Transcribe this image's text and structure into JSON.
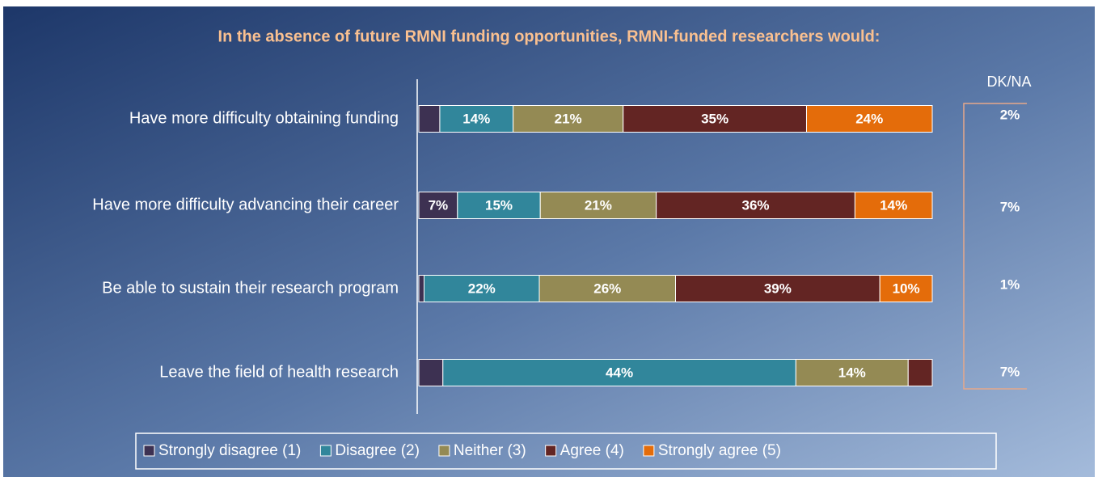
{
  "chart_data": {
    "type": "stacked-bar-horizontal",
    "title": "In the absence of future RMNI funding opportunities, RMNI-funded researchers would:",
    "categories": [
      "Have more difficulty obtaining funding",
      "Have more difficulty advancing their career",
      "Be able to sustain their research program",
      "Leave the field of health research"
    ],
    "series": [
      {
        "name": "Strongly disagree (1)",
        "color": "#3d3152",
        "values": [
          4,
          7,
          1,
          3
        ],
        "value_labels": [
          null,
          "7%",
          null,
          null
        ]
      },
      {
        "name": "Disagree (2)",
        "color": "#31869b",
        "values": [
          14,
          15,
          22,
          44
        ],
        "value_labels": [
          "14%",
          "15%",
          "22%",
          "44%"
        ]
      },
      {
        "name": "Neither (3)",
        "color": "#948a54",
        "values": [
          21,
          21,
          26,
          14
        ],
        "value_labels": [
          "21%",
          "21%",
          "26%",
          "14%"
        ]
      },
      {
        "name": "Agree (4)",
        "color": "#632523",
        "values": [
          35,
          36,
          39,
          3
        ],
        "value_labels": [
          "35%",
          "36%",
          "39%",
          null
        ]
      },
      {
        "name": "Strongly agree (5)",
        "color": "#e46c0a",
        "values": [
          24,
          14,
          10,
          0
        ],
        "value_labels": [
          "24%",
          "14%",
          "10%",
          null
        ]
      }
    ],
    "dk_na": {
      "label": "DK/NA",
      "values": [
        2,
        7,
        1,
        7
      ],
      "value_labels": [
        "2%",
        "7%",
        "1%",
        "7%"
      ]
    },
    "legend": "bottom"
  }
}
